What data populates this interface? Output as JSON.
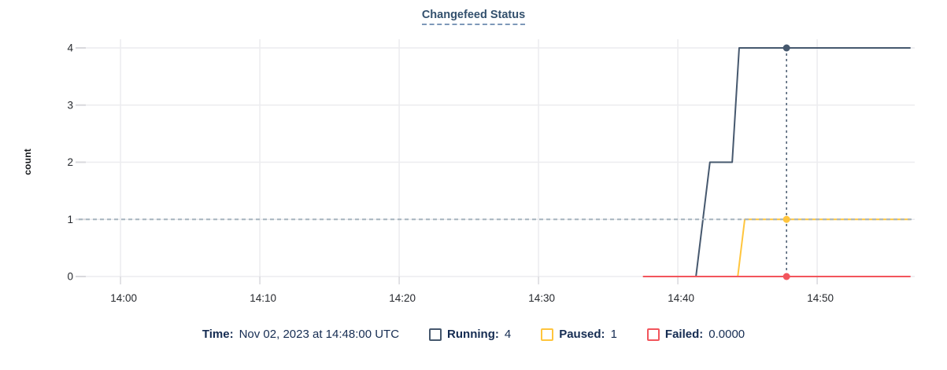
{
  "title": "Changefeed Status",
  "chart_data": {
    "type": "line",
    "title": "Changefeed Status",
    "xlabel": "",
    "ylabel": "count",
    "x_unit": "minutes after 14:00 UTC on Nov 02, 2023",
    "xlim": [
      -3,
      57
    ],
    "ylim": [
      0,
      4
    ],
    "grid": true,
    "x_ticks": [
      {
        "v": 0,
        "label": "14:00"
      },
      {
        "v": 10,
        "label": "14:10"
      },
      {
        "v": 20,
        "label": "14:20"
      },
      {
        "v": 30,
        "label": "14:30"
      },
      {
        "v": 40,
        "label": "14:40"
      },
      {
        "v": 50,
        "label": "14:50"
      }
    ],
    "y_ticks": [
      0,
      1,
      2,
      3,
      4
    ],
    "series": [
      {
        "name": "Running",
        "color": "#46586e",
        "points": [
          [
            37.5,
            0
          ],
          [
            41.3,
            0
          ],
          [
            42.3,
            2
          ],
          [
            43.9,
            2
          ],
          [
            44.4,
            4
          ],
          [
            56.7,
            4
          ]
        ]
      },
      {
        "name": "Paused",
        "color": "#ffc53d",
        "points": [
          [
            37.5,
            0
          ],
          [
            44.3,
            0
          ],
          [
            44.8,
            1
          ],
          [
            56.7,
            1
          ]
        ]
      },
      {
        "name": "Failed",
        "color": "#f2555c",
        "points": [
          [
            37.5,
            0
          ],
          [
            56.7,
            0
          ]
        ]
      }
    ],
    "threshold_line": {
      "y": 1,
      "color": "#a6b3bd",
      "style": "dashed"
    },
    "crosshair": {
      "x": 47.8,
      "time_label": "14:48:00",
      "color": "#46586e",
      "style": "dashed",
      "dots": [
        {
          "series": "Running",
          "y": 4
        },
        {
          "series": "Paused",
          "y": 1
        },
        {
          "series": "Failed",
          "y": 0
        }
      ]
    }
  },
  "legend": {
    "time_label": "Time:",
    "time_value": "Nov 02, 2023 at 14:48:00 UTC",
    "items": [
      {
        "label": "Running:",
        "value": "4",
        "color": "#46586e"
      },
      {
        "label": "Paused:",
        "value": "1",
        "color": "#ffc53d"
      },
      {
        "label": "Failed:",
        "value": "0.0000",
        "color": "#f2555c"
      }
    ]
  },
  "colors": {
    "grid": "#ececef",
    "tick": "#d9d9dd",
    "axis_text": "#26292e",
    "title_text": "#33506d",
    "legend_text": "#152c52",
    "background": "#ffffff"
  }
}
